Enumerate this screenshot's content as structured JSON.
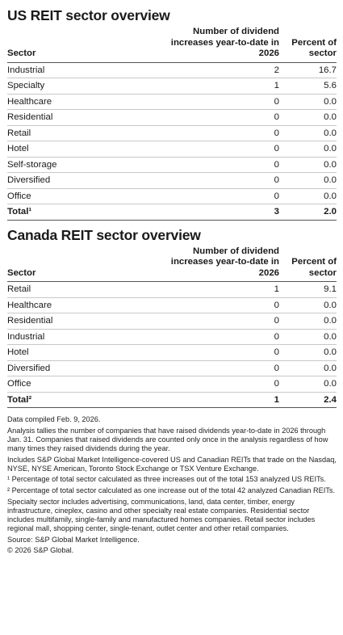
{
  "us": {
    "title": "US REIT sector overview",
    "headers": {
      "sector": "Sector",
      "count": "Number of dividend increases year-to-date in 2026",
      "pct": "Percent of sector"
    },
    "rows": [
      {
        "sector": "Industrial",
        "count": "2",
        "pct": "16.7"
      },
      {
        "sector": "Specialty",
        "count": "1",
        "pct": "5.6"
      },
      {
        "sector": "Healthcare",
        "count": "0",
        "pct": "0.0"
      },
      {
        "sector": "Residential",
        "count": "0",
        "pct": "0.0"
      },
      {
        "sector": "Retail",
        "count": "0",
        "pct": "0.0"
      },
      {
        "sector": "Hotel",
        "count": "0",
        "pct": "0.0"
      },
      {
        "sector": "Self-storage",
        "count": "0",
        "pct": "0.0"
      },
      {
        "sector": "Diversified",
        "count": "0",
        "pct": "0.0"
      },
      {
        "sector": "Office",
        "count": "0",
        "pct": "0.0"
      }
    ],
    "total": {
      "sector": "Total¹",
      "count": "3",
      "pct": "2.0"
    }
  },
  "canada": {
    "title": "Canada REIT sector overview",
    "headers": {
      "sector": "Sector",
      "count": "Number of dividend increases year-to-date in 2026",
      "pct": "Percent of sector"
    },
    "rows": [
      {
        "sector": "Retail",
        "count": "1",
        "pct": "9.1"
      },
      {
        "sector": "Healthcare",
        "count": "0",
        "pct": "0.0"
      },
      {
        "sector": "Residential",
        "count": "0",
        "pct": "0.0"
      },
      {
        "sector": "Industrial",
        "count": "0",
        "pct": "0.0"
      },
      {
        "sector": "Hotel",
        "count": "0",
        "pct": "0.0"
      },
      {
        "sector": "Diversified",
        "count": "0",
        "pct": "0.0"
      },
      {
        "sector": "Office",
        "count": "0",
        "pct": "0.0"
      }
    ],
    "total": {
      "sector": "Total²",
      "count": "1",
      "pct": "2.4"
    }
  },
  "notes": [
    "Data compiled Feb. 9, 2026.",
    "Analysis tallies the number of companies that have raised dividends year-to-date in 2026 through Jan. 31. Companies that raised dividends are counted only once in the analysis regardless of how many times they raised dividends during the year.",
    "Includes S&P Global Market Intelligence-covered US and Canadian REITs that trade on the Nasdaq, NYSE, NYSE American, Toronto Stock Exchange or TSX Venture Exchange.",
    "¹ Percentage of total sector calculated as three increases out of the total 153 analyzed US REITs.",
    "² Percentage of total sector calculated as one increase out of the total 42 analyzed Canadian REITs.",
    "Specialty sector includes advertising, communications, land, data center, timber, energy infrastructure, cineplex, casino and other specialty real estate companies. Residential sector includes multifamily, single-family and manufactured homes companies. Retail sector includes regional mall, shopping center, single-tenant, outlet center and other retail companies.",
    "Source: S&P Global Market Intelligence.",
    "© 2026 S&P Global."
  ]
}
